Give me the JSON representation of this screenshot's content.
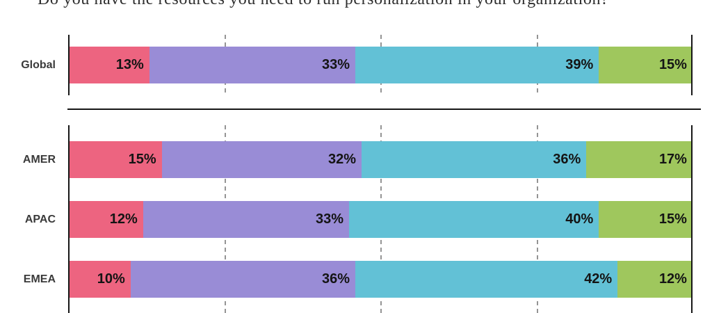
{
  "title": "Do you have the resources you need to run personalization in your organization?",
  "colors": {
    "axis": "#161616",
    "gridline": "#949494",
    "row_label": "#3a3a3a",
    "value_label": "#141414",
    "background": "#ffffff"
  },
  "chart_data": {
    "type": "bar",
    "orientation": "horizontal",
    "stacked": true,
    "title": "Do you have the resources you need to run personalization in your organization?",
    "value_unit": "%",
    "axis": {
      "min": 0,
      "max": 100,
      "gridlines_at": [
        25,
        50,
        75
      ],
      "grid_style": "dashed",
      "legend": "none visible"
    },
    "sections": [
      {
        "rows": [
          "Global"
        ]
      },
      {
        "rows": [
          "AMER",
          "APAC",
          "EMEA"
        ]
      }
    ],
    "categories": [
      "Global",
      "AMER",
      "APAC",
      "EMEA"
    ],
    "series": [
      {
        "name": "pink-segment",
        "color": "#ED6480",
        "values": [
          13,
          15,
          12,
          10
        ]
      },
      {
        "name": "purple-segment",
        "color": "#998CD6",
        "values": [
          33,
          32,
          33,
          36
        ]
      },
      {
        "name": "teal-segment",
        "color": "#62C1D6",
        "values": [
          39,
          36,
          40,
          42
        ]
      },
      {
        "name": "green-segment",
        "color": "#9FC75D",
        "values": [
          15,
          17,
          15,
          12
        ]
      }
    ]
  }
}
